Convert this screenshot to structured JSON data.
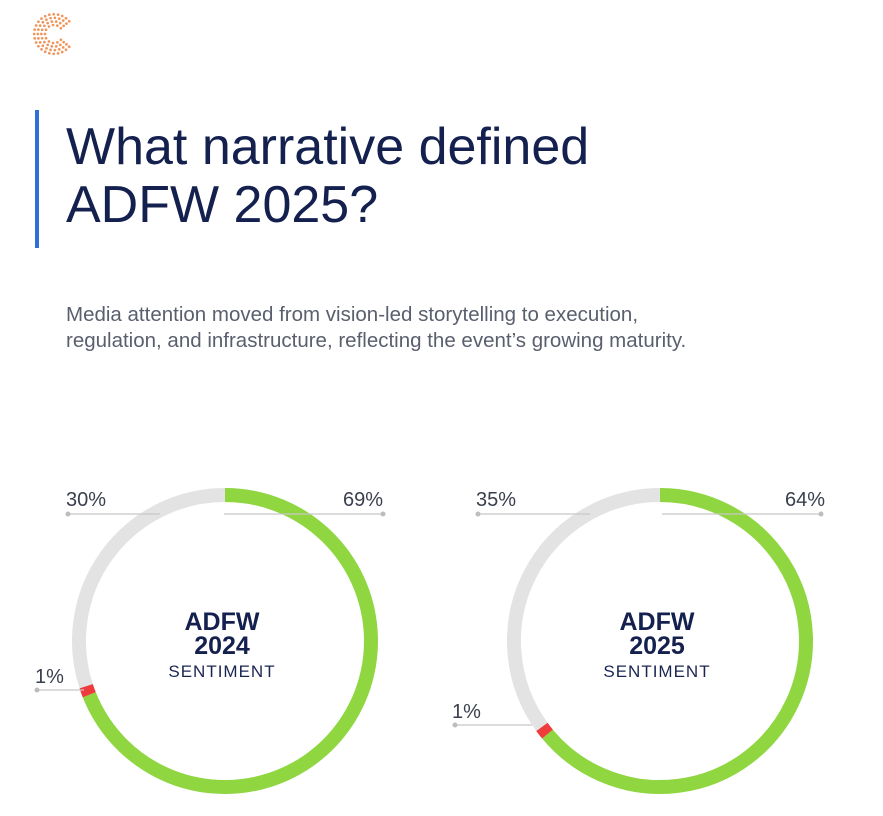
{
  "header": {
    "title_line1": "What narrative defined",
    "title_line2": "ADFW 2025?",
    "subtitle_line1": "Media attention moved from vision-led storytelling to execution,",
    "subtitle_line2": "regulation, and infrastructure, reflecting the event’s growing maturity."
  },
  "colors": {
    "positive": "#8fd640",
    "neutral": "#e3e3e3",
    "negative": "#ee3b3b",
    "accent": "#2f6fd6",
    "logo": "#f0955a"
  },
  "icons": {
    "logo": "c-logo-icon"
  },
  "chart_data": [
    {
      "type": "pie",
      "subtype": "donut",
      "center_title_line1": "ADFW",
      "center_title_line2": "2024",
      "center_subtitle": "SENTIMENT",
      "slices": [
        {
          "value": 69,
          "label": "69%",
          "color": "#8fd640"
        },
        {
          "value": 1,
          "label": "1%",
          "color": "#ee3b3b"
        },
        {
          "value": 30,
          "label": "30%",
          "color": "#e3e3e3"
        }
      ]
    },
    {
      "type": "pie",
      "subtype": "donut",
      "center_title_line1": "ADFW",
      "center_title_line2": "2025",
      "center_subtitle": "SENTIMENT",
      "slices": [
        {
          "value": 64,
          "label": "64%",
          "color": "#8fd640"
        },
        {
          "value": 1,
          "label": "1%",
          "color": "#ee3b3b"
        },
        {
          "value": 35,
          "label": "35%",
          "color": "#e3e3e3"
        }
      ]
    }
  ]
}
